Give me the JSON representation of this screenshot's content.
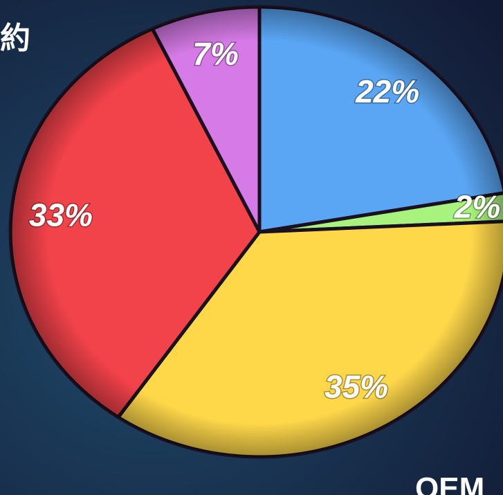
{
  "chart_data": {
    "type": "pie",
    "annotations": [
      "約",
      "OEM"
    ],
    "categories": [
      null,
      null,
      null,
      null,
      null
    ],
    "values": [
      22,
      2,
      35,
      33,
      7
    ],
    "value_labels": [
      "22%",
      "2%",
      "35%",
      "33%",
      "7%"
    ],
    "colors": [
      "#5aa6f5",
      "#a8f27e",
      "#ffd84a",
      "#f2424a",
      "#d57ae6"
    ]
  }
}
